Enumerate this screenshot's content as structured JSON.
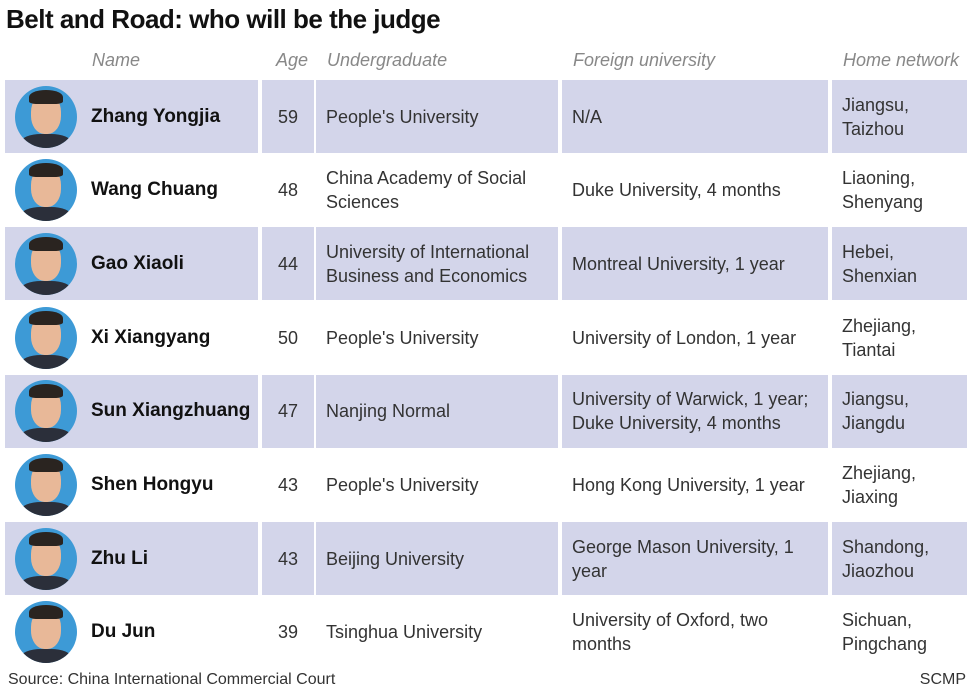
{
  "title": "Belt and Road: who will be the judge",
  "headers": [
    "Name",
    "Age",
    "Undergraduate",
    "Foreign university",
    "Home network"
  ],
  "rows": [
    {
      "name": "Zhang Yongjia",
      "age": "59",
      "undergrad": "People's University",
      "foreign": "N/A",
      "home": "Jiangsu, Taizhou"
    },
    {
      "name": "Wang Chuang",
      "age": "48",
      "undergrad": "China Academy of Social Sciences",
      "foreign": "Duke University, 4 months",
      "home": "Liaoning, Shenyang"
    },
    {
      "name": "Gao Xiaoli",
      "age": "44",
      "undergrad": "University of International Business and Economics",
      "foreign": "Montreal University, 1 year",
      "home": "Hebei, Shenxian"
    },
    {
      "name": "Xi Xiangyang",
      "age": "50",
      "undergrad": "People's University",
      "foreign": "University of London, 1 year",
      "home": "Zhejiang, Tiantai"
    },
    {
      "name": "Sun Xiangzhuang",
      "age": "47",
      "undergrad": "Nanjing Normal",
      "foreign": "University of Warwick, 1 year; Duke University, 4 months",
      "home": "Jiangsu, Jiangdu"
    },
    {
      "name": "Shen Hongyu",
      "age": "43",
      "undergrad": "People's University",
      "foreign": "Hong Kong University, 1 year",
      "home": "Zhejiang, Jiaxing"
    },
    {
      "name": "Zhu Li",
      "age": "43",
      "undergrad": "Beijing University",
      "foreign": "George Mason University, 1 year",
      "home": "Shandong, Jiaozhou"
    },
    {
      "name": "Du Jun",
      "age": "39",
      "undergrad": "Tsinghua University",
      "foreign": "University of Oxford, two months",
      "home": "Sichuan, Pingchang"
    }
  ],
  "source": "Source: China International Commercial Court",
  "credit": "SCMP",
  "colors": {
    "row_shade": "#d3d5ea",
    "photo_bg": "#3d9ad6"
  }
}
